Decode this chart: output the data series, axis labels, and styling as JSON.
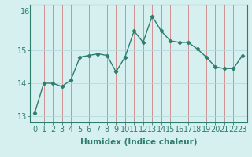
{
  "x": [
    0,
    1,
    2,
    3,
    4,
    5,
    6,
    7,
    8,
    9,
    10,
    11,
    12,
    13,
    14,
    15,
    16,
    17,
    18,
    19,
    20,
    21,
    22,
    23
  ],
  "y": [
    13.1,
    14.0,
    14.0,
    13.9,
    14.1,
    14.8,
    14.85,
    14.9,
    14.85,
    14.35,
    14.8,
    15.6,
    15.25,
    16.05,
    15.6,
    15.3,
    15.25,
    15.25,
    15.05,
    14.8,
    14.5,
    14.45,
    14.45,
    14.85
  ],
  "line_color": "#2e7d6e",
  "marker": "D",
  "marker_size": 2.2,
  "background_color": "#d6f0f0",
  "grid_color": "#b8dada",
  "xlabel": "Humidex (Indice chaleur)",
  "ylim": [
    12.8,
    16.4
  ],
  "yticks": [
    13,
    14,
    15
  ],
  "ytick_labels": [
    "13",
    "14",
    "15"
  ],
  "xlabel_fontsize": 7.5,
  "tick_fontsize": 7,
  "line_width": 1.0,
  "top_label": "16"
}
